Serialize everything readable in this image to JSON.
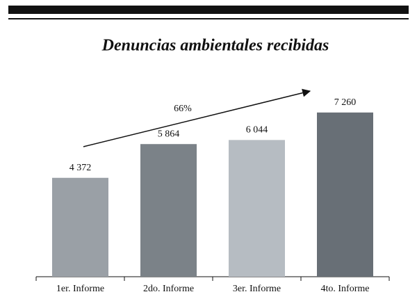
{
  "chart_data": {
    "type": "bar",
    "title": "Denuncias ambientales recibidas",
    "categories": [
      "1er. Informe",
      "2do. Informe",
      "3er. Informe",
      "4to. Informe"
    ],
    "values": [
      4372,
      5864,
      6044,
      7260
    ],
    "value_labels": [
      "4 372",
      "5 864",
      "6 044",
      "7 260"
    ],
    "colors": [
      "#9aa0a6",
      "#7b8288",
      "#b6bcc2",
      "#686f76"
    ],
    "ylim": [
      0,
      7500
    ],
    "annotation": "66%"
  }
}
